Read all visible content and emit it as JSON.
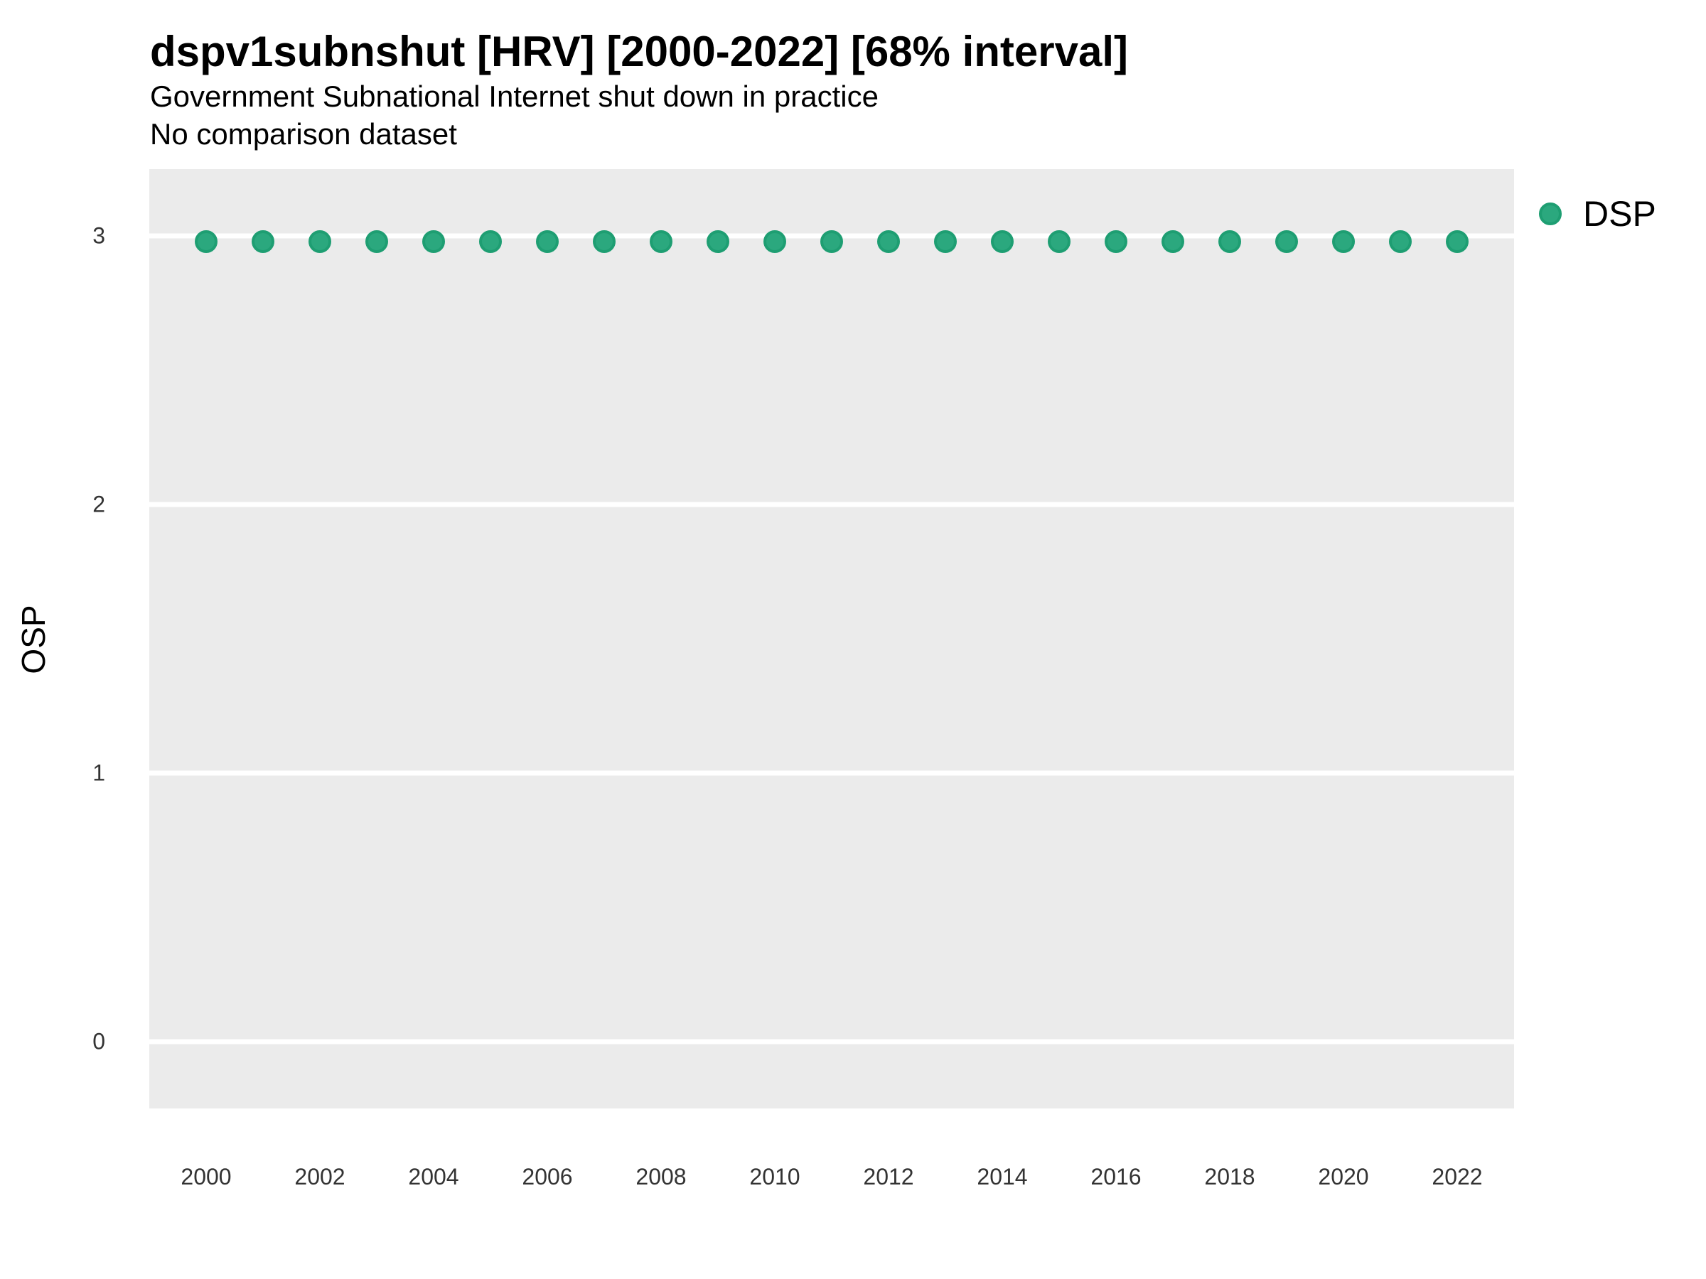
{
  "header": {
    "title": "dspv1subnshut [HRV] [2000-2022] [68% interval]",
    "subtitle": "Government Subnational Internet shut down in practice",
    "note": "No comparison dataset"
  },
  "axes": {
    "y_label": "OSP",
    "x_label": ""
  },
  "legend": {
    "position": "right",
    "items": [
      {
        "label": "DSP",
        "marker": "circle-icon",
        "fill": "#2BA87E",
        "stroke": "#1E9E72"
      }
    ]
  },
  "colors": {
    "point_fill": "#2BA87E",
    "point_stroke": "#1E9E72",
    "panel_background": "#EBEBEB",
    "gridline": "#FFFFFF",
    "axis_text": "#333333",
    "title_text": "#000000"
  },
  "chart_data": {
    "type": "scatter",
    "title": "dspv1subnshut [HRV] [2000-2022] [68% interval]",
    "subtitle": "Government Subnational Internet shut down in practice",
    "note": "No comparison dataset",
    "xlabel": "",
    "ylabel": "OSP",
    "x": [
      2000,
      2001,
      2002,
      2003,
      2004,
      2005,
      2006,
      2007,
      2008,
      2009,
      2010,
      2011,
      2012,
      2013,
      2014,
      2015,
      2016,
      2017,
      2018,
      2019,
      2020,
      2021,
      2022
    ],
    "series": [
      {
        "name": "DSP",
        "values": [
          2.98,
          2.98,
          2.98,
          2.98,
          2.98,
          2.98,
          2.98,
          2.98,
          2.98,
          2.98,
          2.98,
          2.98,
          2.98,
          2.98,
          2.98,
          2.98,
          2.98,
          2.98,
          2.98,
          2.98,
          2.98,
          2.98,
          2.98
        ]
      }
    ],
    "xticks": [
      2000,
      2002,
      2004,
      2006,
      2008,
      2010,
      2012,
      2014,
      2016,
      2018,
      2020,
      2022
    ],
    "yticks": [
      0,
      1,
      2,
      3
    ],
    "xlim": [
      1999,
      2023
    ],
    "ylim": [
      -0.25,
      3.25
    ],
    "grid": "horizontal-major-only",
    "legend_position": "right",
    "interval": "68% (no visible interval bars; zero-width interval)"
  }
}
